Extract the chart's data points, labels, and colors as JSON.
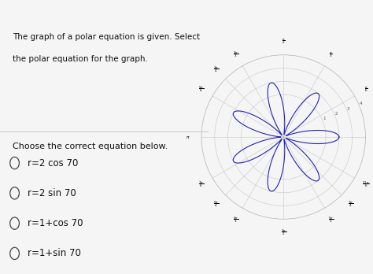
{
  "title_line1": "The graph of a polar equation is given. Select",
  "title_line2": "the polar equation for the graph.",
  "question_text": "Choose the correct equation below.",
  "option_texts": [
    "r = 2 cos 7θ",
    "r = 2 sin 7θ",
    "r = 1 + cos 7θ",
    "r = 1 + sin 7θ"
  ],
  "bg_color": "#f5f5f5",
  "curve_color": "#2222bb",
  "grid_color": "#bbbbbb",
  "text_color": "#111111",
  "max_r": 4,
  "fig_width": 4.74,
  "fig_height": 3.48,
  "font_size_title": 7.5,
  "font_size_question": 8.0,
  "font_size_options": 8.5
}
